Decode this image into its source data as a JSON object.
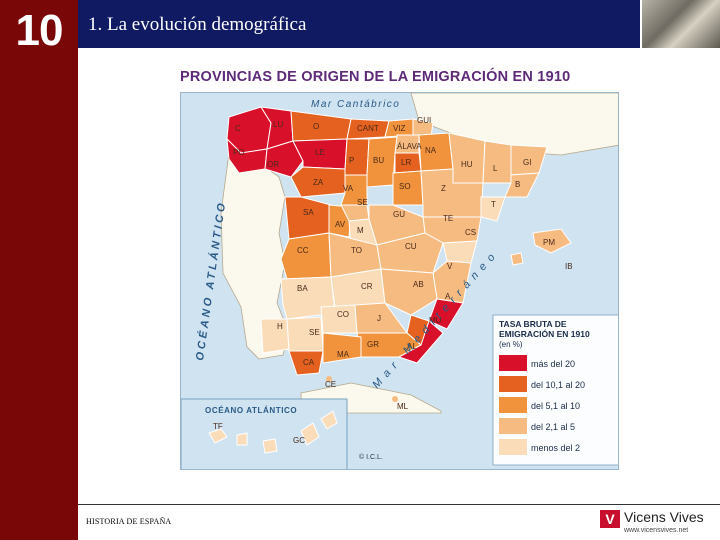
{
  "slide": {
    "chapter_number": "10",
    "title": "1. La evolución demográfica",
    "footer": "HISTORIA DE ESPAÑA",
    "logo_mark": "V",
    "logo_name": "Vicens Vives",
    "logo_url": "www.vicensvives.net"
  },
  "map": {
    "title": "PROVINCIAS DE ORIGEN DE LA EMIGRACIÓN EN 1910",
    "sea_labels": {
      "cantabrico": "Mar Cantábrico",
      "atlantico": "OCÉANO ATLÁNTICO",
      "mediterraneo": "Mar Mediterráneo",
      "canarias_ocean": "OCÉANO ATLÁNTICO"
    },
    "credit": "© I.C.L.",
    "legend": {
      "title_line1": "TASA BRUTA DE",
      "title_line2": "EMIGRACIÓN EN 1910",
      "unit": "(en %)",
      "items": [
        {
          "label": "más del 20",
          "color": "#d9102a"
        },
        {
          "label": "del 10,1 al 20",
          "color": "#e4611f"
        },
        {
          "label": "del 5,1 al 10",
          "color": "#f0933c"
        },
        {
          "label": "del 2,1 al 5",
          "color": "#f6bb80"
        },
        {
          "label": "menos del 2",
          "color": "#fbdcb9"
        }
      ]
    },
    "provinces": [
      "C",
      "LU",
      "O",
      "CANT",
      "VIZ",
      "GUI",
      "PO",
      "OR",
      "LE",
      "P",
      "BU",
      "ÁLAVA",
      "LR",
      "NA",
      "HU",
      "L",
      "GI",
      "ZA",
      "VA",
      "SO",
      "Z",
      "B",
      "SA",
      "SE",
      "AV",
      "GU",
      "TE",
      "T",
      "M",
      "CS",
      "CC",
      "TO",
      "CU",
      "V",
      "PM",
      "IB",
      "BA",
      "CR",
      "AB",
      "A",
      "H",
      "CO",
      "J",
      "MU",
      "SE",
      "GR",
      "AL",
      "CA",
      "MA",
      "CE",
      "ML",
      "TF",
      "GC"
    ]
  }
}
